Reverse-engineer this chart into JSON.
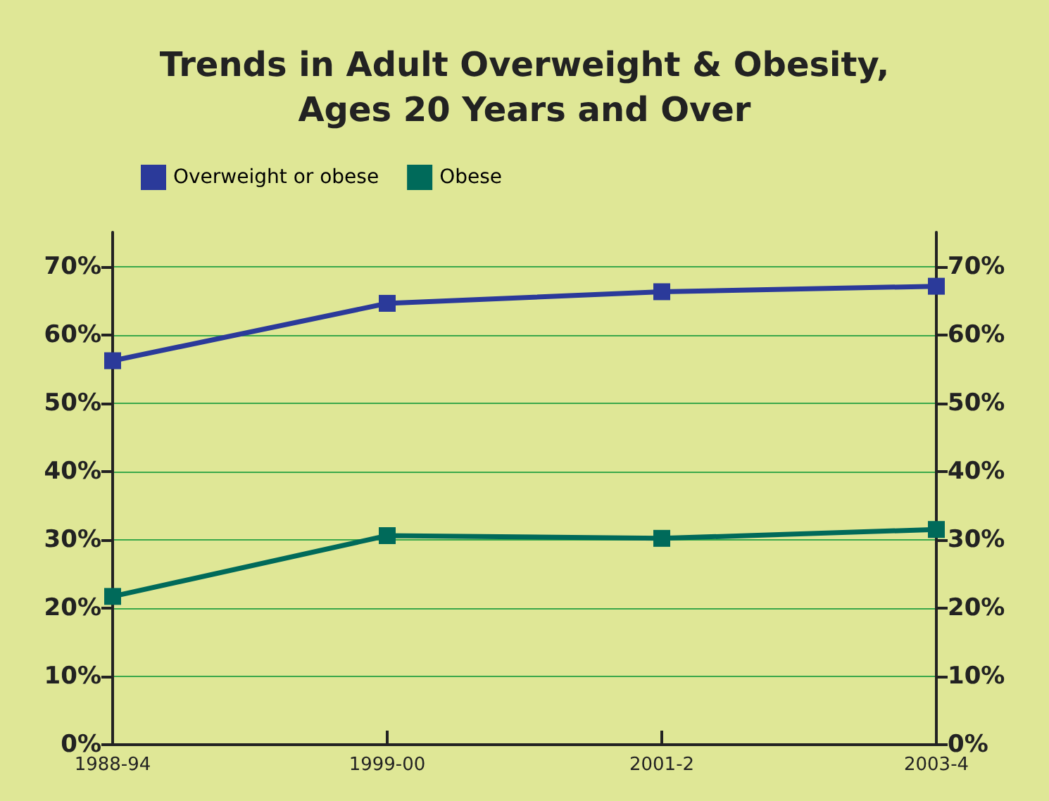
{
  "chart_data": {
    "type": "line",
    "title": "Trends in Adult Overweight & Obesity,\nAges 20 Years and Over",
    "categories": [
      "1988-94",
      "1999-00",
      "2001-2",
      "2003-4"
    ],
    "series": [
      {
        "name": "Overweight or obese",
        "color": "#2b3a9a",
        "values": [
          56.2,
          64.6,
          66.3,
          67.1
        ]
      },
      {
        "name": "Obese",
        "color": "#006a5a",
        "values": [
          21.7,
          30.6,
          30.2,
          31.5
        ]
      }
    ],
    "ylim": [
      0,
      75
    ],
    "yticks": [
      {
        "value": 0,
        "label": "0%"
      },
      {
        "value": 10,
        "label": "10%"
      },
      {
        "value": 20,
        "label": "20%"
      },
      {
        "value": 30,
        "label": "30%"
      },
      {
        "value": 40,
        "label": "40%"
      },
      {
        "value": 50,
        "label": "50%"
      },
      {
        "value": 60,
        "label": "60%"
      },
      {
        "value": 70,
        "label": "70%"
      }
    ],
    "y2lim": [
      0,
      75
    ],
    "y2ticks": [
      {
        "value": 0,
        "label": "0%"
      },
      {
        "value": 10,
        "label": "10%"
      },
      {
        "value": 20,
        "label": "20%"
      },
      {
        "value": 30,
        "label": "30%"
      },
      {
        "value": 40,
        "label": "40%"
      },
      {
        "value": 50,
        "label": "50%"
      },
      {
        "value": 60,
        "label": "60%"
      },
      {
        "value": 70,
        "label": "70%"
      }
    ],
    "grid": "y",
    "legend": "top left",
    "marker": "square",
    "line_style": "solid"
  }
}
